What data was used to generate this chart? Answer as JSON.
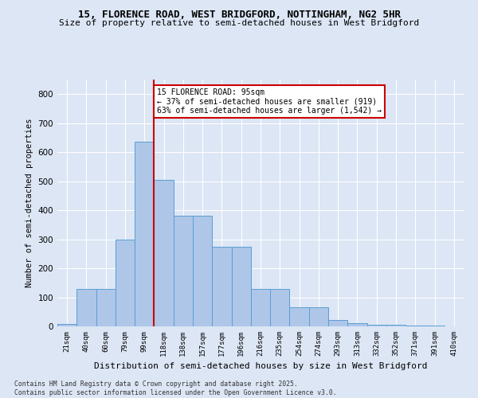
{
  "title1": "15, FLORENCE ROAD, WEST BRIDGFORD, NOTTINGHAM, NG2 5HR",
  "title2": "Size of property relative to semi-detached houses in West Bridgford",
  "xlabel": "Distribution of semi-detached houses by size in West Bridgford",
  "ylabel": "Number of semi-detached properties",
  "footnote": "Contains HM Land Registry data © Crown copyright and database right 2025.\nContains public sector information licensed under the Open Government Licence v3.0.",
  "bin_labels": [
    "21sqm",
    "40sqm",
    "60sqm",
    "79sqm",
    "99sqm",
    "118sqm",
    "138sqm",
    "157sqm",
    "177sqm",
    "196sqm",
    "216sqm",
    "235sqm",
    "254sqm",
    "274sqm",
    "293sqm",
    "313sqm",
    "332sqm",
    "352sqm",
    "371sqm",
    "391sqm",
    "410sqm"
  ],
  "bar_values": [
    8,
    128,
    128,
    300,
    635,
    505,
    380,
    380,
    275,
    275,
    130,
    130,
    65,
    65,
    22,
    10,
    5,
    5,
    2,
    2,
    0
  ],
  "bar_color": "#aec6e8",
  "bar_edge_color": "#5a9fd4",
  "vline_x": 4.5,
  "vline_color": "#cc0000",
  "annotation_text": "15 FLORENCE ROAD: 95sqm\n← 37% of semi-detached houses are smaller (919)\n63% of semi-detached houses are larger (1,542) →",
  "annotation_box_color": "#cc0000",
  "background_color": "#dce6f5",
  "plot_background": "#dce6f5",
  "ylim": [
    0,
    850
  ],
  "yticks": [
    0,
    100,
    200,
    300,
    400,
    500,
    600,
    700,
    800
  ],
  "title1_fontsize": 9,
  "title2_fontsize": 8
}
